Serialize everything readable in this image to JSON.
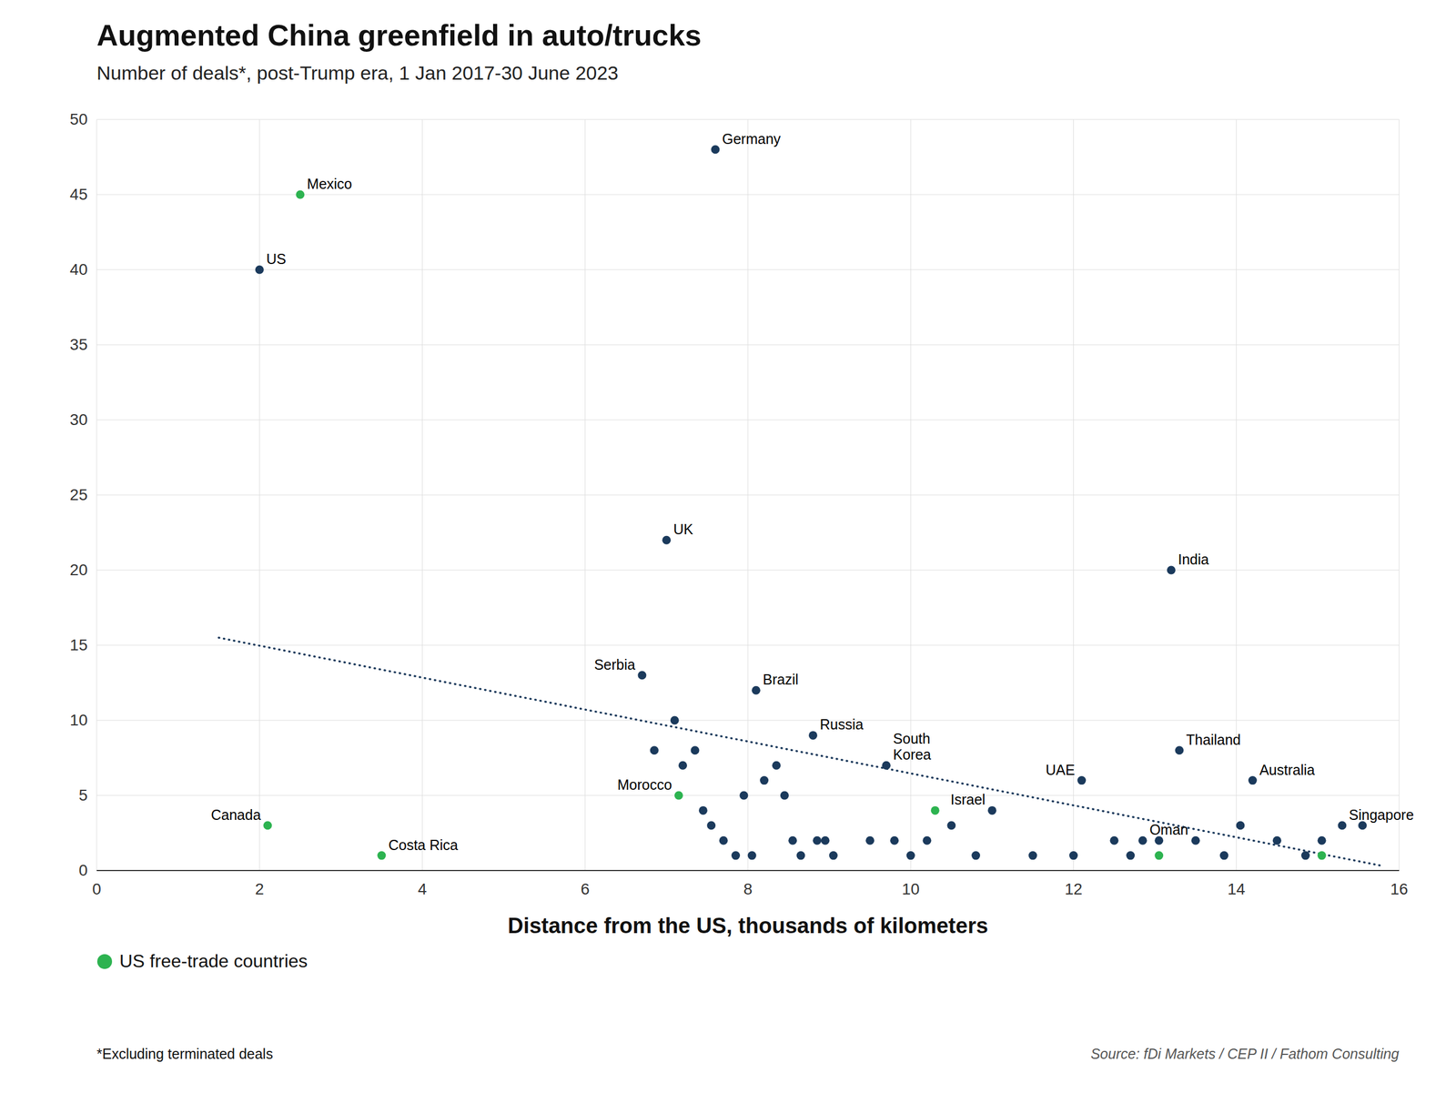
{
  "chart_data": {
    "type": "scatter",
    "title": "Augmented China greenfield in auto/trucks",
    "subtitle": "Number of deals*, post-Trump era, 1 Jan 2017-30 June 2023",
    "xlabel": "Distance from the US, thousands of kilometers",
    "footnote": "*Excluding terminated deals",
    "source": "Source: fDi Markets / CEP II / Fathom Consulting",
    "xlim": [
      0,
      16
    ],
    "ylim": [
      0,
      50
    ],
    "xticks": [
      0,
      2,
      4,
      6,
      8,
      10,
      12,
      14,
      16
    ],
    "yticks": [
      0,
      5,
      10,
      15,
      20,
      25,
      30,
      35,
      40,
      45,
      50
    ],
    "grid": true,
    "legend": "bottom",
    "series": [
      {
        "type": "scatter",
        "color": "#1b3a5c",
        "marker": "circle",
        "x": [
          2.0,
          7.6,
          7.0,
          13.2,
          6.7,
          8.1,
          8.8,
          9.7,
          12.1,
          13.3,
          14.2,
          15.3,
          11.0,
          12.85,
          6.85,
          7.1,
          7.2,
          7.35,
          7.45,
          7.55,
          7.7,
          7.85,
          7.95,
          8.05,
          8.2,
          8.35,
          8.45,
          8.55,
          8.65,
          8.85,
          8.95,
          9.05,
          9.5,
          9.8,
          10.0,
          10.2,
          10.5,
          10.8,
          11.5,
          12.0,
          12.5,
          12.7,
          13.05,
          13.5,
          13.85,
          14.05,
          14.5,
          14.85,
          15.05,
          15.55
        ],
        "values": [
          40,
          48,
          22,
          20,
          13,
          12,
          9,
          7,
          6,
          8,
          6,
          3,
          4,
          2,
          8,
          10,
          7,
          8,
          4,
          3,
          2,
          1,
          5,
          1,
          6,
          7,
          5,
          2,
          1,
          2,
          2,
          1,
          2,
          2,
          1,
          2,
          3,
          1,
          1,
          1,
          2,
          1,
          2,
          2,
          1,
          3,
          2,
          1,
          2,
          3
        ],
        "labels": [
          "US",
          "Germany",
          "UK",
          "India",
          "Serbia",
          "Brazil",
          "Russia",
          "South\nKorea",
          "UAE",
          "Thailand",
          "Australia",
          "Singapore",
          "Israel",
          "Oman",
          null,
          null,
          null,
          null,
          null,
          null,
          null,
          null,
          null,
          null,
          null,
          null,
          null,
          null,
          null,
          null,
          null,
          null,
          null,
          null,
          null,
          null,
          null,
          null,
          null,
          null,
          null,
          null,
          null,
          null,
          null,
          null,
          null,
          null,
          null,
          null
        ]
      },
      {
        "name": "US free-trade countries",
        "type": "scatter",
        "color": "#2db350",
        "marker": "circle",
        "x": [
          2.1,
          2.5,
          3.5,
          7.15,
          10.3,
          13.05,
          15.05
        ],
        "values": [
          3,
          45,
          1,
          5,
          4,
          1,
          1
        ],
        "labels": [
          "Canada",
          "Mexico",
          "Costa Rica",
          "Morocco",
          null,
          null,
          null
        ]
      },
      {
        "type": "line",
        "color": "#1b3a5c",
        "line_style": "dotted",
        "x": [
          1.5,
          15.8
        ],
        "values": [
          15.5,
          0.3
        ]
      }
    ]
  }
}
